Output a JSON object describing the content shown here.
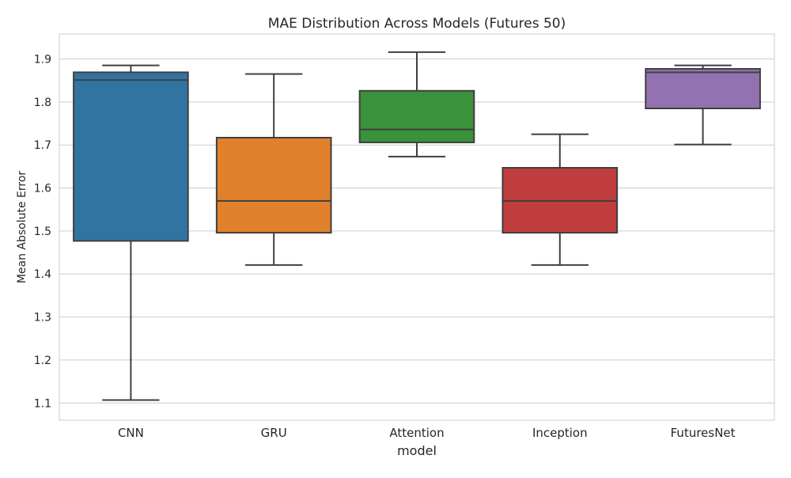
{
  "chart_data": {
    "type": "boxplot",
    "title": "MAE Distribution Across Models (Futures 50)",
    "xlabel": "model",
    "ylabel": "Mean Absolute Error",
    "categories": [
      "CNN",
      "GRU",
      "Attention",
      "Inception",
      "FuturesNet"
    ],
    "boxes": [
      {
        "category": "CNN",
        "whisker_low": 1.107,
        "q1": 1.477,
        "median": 1.851,
        "q3": 1.869,
        "whisker_high": 1.885,
        "color": "#3274a1"
      },
      {
        "category": "GRU",
        "whisker_low": 1.421,
        "q1": 1.496,
        "median": 1.57,
        "q3": 1.717,
        "whisker_high": 1.865,
        "color": "#e1812c"
      },
      {
        "category": "Attention",
        "whisker_low": 1.673,
        "q1": 1.706,
        "median": 1.736,
        "q3": 1.826,
        "whisker_high": 1.916,
        "color": "#3a923a"
      },
      {
        "category": "Inception",
        "whisker_low": 1.421,
        "q1": 1.496,
        "median": 1.57,
        "q3": 1.647,
        "whisker_high": 1.725,
        "color": "#c03d3e"
      },
      {
        "category": "FuturesNet",
        "whisker_low": 1.701,
        "q1": 1.785,
        "median": 1.869,
        "q3": 1.877,
        "whisker_high": 1.885,
        "color": "#9372b2"
      }
    ],
    "yticks": [
      "1.1",
      "1.2",
      "1.3",
      "1.4",
      "1.5",
      "1.6",
      "1.7",
      "1.8",
      "1.9"
    ],
    "ylim": [
      1.06,
      1.958
    ],
    "grid": true,
    "legend": "none"
  }
}
